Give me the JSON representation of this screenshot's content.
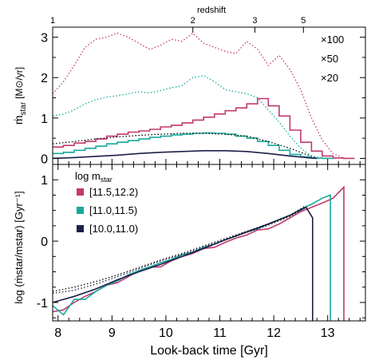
{
  "colors": {
    "magenta": "#c0396e",
    "teal": "#17a99c",
    "navy": "#1c1f4a",
    "black": "#000000"
  },
  "top_axis": {
    "title": "redshift",
    "ticks": [
      {
        "label": "1",
        "t": 7.9
      },
      {
        "label": "2",
        "t": 10.5
      },
      {
        "label": "3",
        "t": 11.65
      },
      {
        "label": "5",
        "t": 12.55
      }
    ]
  },
  "x_axis": {
    "label": "Look-back time [Gyr]",
    "ticks": [
      "8",
      "9",
      "10",
      "11",
      "12",
      "13"
    ]
  },
  "upper_panel": {
    "ylabel_main": "ṁ",
    "ylabel_sub": "star",
    "ylabel_unit": "[M⊙/yr]",
    "ticks": [
      "0",
      "1",
      "2",
      "3"
    ],
    "multiplier_labels": [
      {
        "text": "×100",
        "color_key": "magenta"
      },
      {
        "text": "×50",
        "color_key": "teal"
      },
      {
        "text": "×20",
        "color_key": "navy"
      }
    ]
  },
  "lower_panel": {
    "ylabel_text": "log (ṁstar/mstar)  [Gyr⁻¹]",
    "ticks": [
      "-1",
      "0",
      "1"
    ],
    "legend_title_main": "log m",
    "legend_title_sub": "star",
    "legend": [
      {
        "label": "[11.5,12.2)",
        "color_key": "magenta"
      },
      {
        "label": "[11.0,11.5)",
        "color_key": "teal"
      },
      {
        "label": "[10.0,11.0)",
        "color_key": "navy"
      }
    ]
  },
  "chart_data": [
    {
      "type": "line",
      "title": "",
      "xlabel": "Look-back time [Gyr]",
      "ylabel": "ṁstar [M⊙/yr]",
      "xlim": [
        7.9,
        13.7
      ],
      "ylim": [
        -0.15,
        3.25
      ],
      "series": [
        {
          "name": "[11.5,12.2)",
          "style": "step",
          "color_key": "magenta",
          "x": [
            7.9,
            8.1,
            8.3,
            8.5,
            8.7,
            8.9,
            9.1,
            9.3,
            9.5,
            9.7,
            9.9,
            10.1,
            10.3,
            10.5,
            10.7,
            10.9,
            11.1,
            11.3,
            11.5,
            11.7,
            11.9,
            12.1,
            12.3,
            12.5,
            12.7,
            12.9,
            13.1,
            13.3
          ],
          "y": [
            0.28,
            0.32,
            0.38,
            0.42,
            0.48,
            0.55,
            0.6,
            0.65,
            0.68,
            0.72,
            0.78,
            0.82,
            0.88,
            0.95,
            1.02,
            1.1,
            1.18,
            1.25,
            1.35,
            1.48,
            1.3,
            1.05,
            0.7,
            0.4,
            0.18,
            0.06,
            0.01,
            0.0
          ]
        },
        {
          "name": "[11.0,11.5)",
          "style": "step",
          "color_key": "teal",
          "x": [
            7.9,
            8.1,
            8.3,
            8.5,
            8.7,
            8.9,
            9.1,
            9.3,
            9.5,
            9.7,
            9.9,
            10.1,
            10.3,
            10.5,
            10.7,
            10.9,
            11.1,
            11.3,
            11.5,
            11.7,
            11.9,
            12.1,
            12.3,
            12.5,
            12.7,
            12.9
          ],
          "y": [
            0.12,
            0.15,
            0.2,
            0.25,
            0.3,
            0.36,
            0.4,
            0.44,
            0.48,
            0.52,
            0.55,
            0.58,
            0.6,
            0.62,
            0.63,
            0.62,
            0.6,
            0.55,
            0.5,
            0.42,
            0.32,
            0.2,
            0.1,
            0.04,
            0.01,
            0.0
          ]
        },
        {
          "name": "[10.0,11.0)",
          "style": "line",
          "color_key": "navy",
          "x": [
            7.9,
            8.3,
            8.7,
            9.1,
            9.5,
            9.9,
            10.3,
            10.7,
            11.1,
            11.5,
            11.9,
            12.3,
            12.6,
            12.8
          ],
          "y": [
            0.0,
            0.02,
            0.05,
            0.08,
            0.12,
            0.15,
            0.17,
            0.19,
            0.19,
            0.17,
            0.12,
            0.06,
            0.02,
            0.0
          ]
        },
        {
          "name": "",
          "style": "dotted",
          "color_key": "black",
          "x": [
            7.9,
            8.3,
            8.7,
            9.1,
            9.5,
            9.9,
            10.3,
            10.7,
            11.1,
            11.5,
            11.9,
            12.3,
            12.6,
            12.8
          ],
          "y": [
            0.36,
            0.42,
            0.48,
            0.53,
            0.57,
            0.6,
            0.62,
            0.62,
            0.6,
            0.55,
            0.42,
            0.25,
            0.1,
            0.02
          ]
        },
        {
          "name": "×100",
          "style": "dotted",
          "color_key": "magenta",
          "x": [
            7.9,
            8.1,
            8.3,
            8.5,
            8.7,
            8.9,
            9.1,
            9.3,
            9.5,
            9.7,
            9.9,
            10.1,
            10.3,
            10.5,
            10.7,
            10.9,
            11.1,
            11.3,
            11.5,
            11.7,
            11.9,
            12.1,
            12.3,
            12.5,
            12.7,
            12.9,
            13.1,
            13.3
          ],
          "y": [
            1.6,
            1.9,
            2.3,
            2.75,
            2.95,
            3.0,
            3.1,
            3.0,
            2.85,
            2.7,
            2.8,
            2.95,
            2.9,
            3.1,
            2.85,
            2.75,
            2.65,
            2.6,
            2.9,
            2.7,
            2.3,
            2.55,
            2.2,
            1.7,
            1.0,
            0.45,
            0.12,
            0.0
          ]
        },
        {
          "name": "×50",
          "style": "dotted",
          "color_key": "teal",
          "x": [
            7.9,
            8.1,
            8.3,
            8.5,
            8.7,
            8.9,
            9.1,
            9.3,
            9.5,
            9.7,
            9.9,
            10.1,
            10.3,
            10.5,
            10.7,
            10.9,
            11.1,
            11.3,
            11.5,
            11.7,
            11.9,
            12.1,
            12.3,
            12.5,
            12.7,
            12.9
          ],
          "y": [
            1.05,
            1.1,
            1.2,
            1.35,
            1.45,
            1.52,
            1.55,
            1.6,
            1.65,
            1.62,
            1.68,
            1.75,
            1.8,
            2.0,
            2.05,
            1.9,
            1.7,
            1.65,
            1.6,
            1.5,
            1.2,
            0.9,
            0.55,
            0.25,
            0.06,
            0.0
          ]
        }
      ]
    },
    {
      "type": "line",
      "title": "",
      "xlabel": "Look-back time [Gyr]",
      "ylabel": "log (ṁstar/mstar) [Gyr⁻¹]",
      "xlim": [
        7.9,
        13.7
      ],
      "ylim": [
        -1.3,
        1.25
      ],
      "series": [
        {
          "name": "[11.5,12.2)",
          "color_key": "magenta",
          "x": [
            7.9,
            8.1,
            8.3,
            8.5,
            8.7,
            8.9,
            9.1,
            9.3,
            9.5,
            9.7,
            9.9,
            10.1,
            10.3,
            10.5,
            10.7,
            10.9,
            11.1,
            11.3,
            11.5,
            11.7,
            11.9,
            12.1,
            12.3,
            12.5,
            12.7,
            12.9,
            13.1,
            13.3,
            13.3
          ],
          "y": [
            -1.15,
            -1.12,
            -1.0,
            -0.9,
            -0.82,
            -0.72,
            -0.68,
            -0.58,
            -0.48,
            -0.42,
            -0.42,
            -0.32,
            -0.25,
            -0.2,
            -0.12,
            -0.1,
            -0.02,
            0.05,
            0.1,
            0.18,
            0.2,
            0.28,
            0.38,
            0.48,
            0.55,
            0.62,
            0.7,
            0.88,
            -1.3
          ]
        },
        {
          "name": "[11.0,11.5)",
          "color_key": "teal",
          "x": [
            7.9,
            8.1,
            8.3,
            8.5,
            8.7,
            8.9,
            9.1,
            9.3,
            9.5,
            9.7,
            9.9,
            10.1,
            10.3,
            10.5,
            10.7,
            10.9,
            11.1,
            11.3,
            11.5,
            11.7,
            11.9,
            12.1,
            12.3,
            12.5,
            12.7,
            12.9,
            13.05,
            13.05
          ],
          "y": [
            -1.05,
            -1.2,
            -0.95,
            -0.95,
            -0.82,
            -0.72,
            -0.65,
            -0.55,
            -0.48,
            -0.42,
            -0.35,
            -0.3,
            -0.22,
            -0.18,
            -0.1,
            -0.05,
            0.02,
            0.08,
            0.15,
            0.2,
            0.28,
            0.35,
            0.42,
            0.52,
            0.6,
            0.7,
            0.75,
            -1.3
          ]
        },
        {
          "name": "[10.0,11.0)",
          "color_key": "navy",
          "x": [
            7.9,
            8.3,
            8.7,
            9.1,
            9.5,
            9.9,
            10.3,
            10.7,
            11.1,
            11.5,
            11.9,
            12.3,
            12.6,
            12.72,
            12.72
          ],
          "y": [
            -1.0,
            -0.9,
            -0.78,
            -0.63,
            -0.5,
            -0.38,
            -0.25,
            -0.12,
            0.02,
            0.15,
            0.28,
            0.42,
            0.55,
            0.38,
            -1.3
          ]
        },
        {
          "name": "",
          "style": "dotted",
          "color_key": "navy",
          "x": [
            7.9,
            8.3,
            8.7,
            9.1,
            9.5,
            9.9,
            10.3,
            10.7,
            11.1,
            11.5,
            11.9,
            12.3,
            12.6
          ],
          "y": [
            -0.85,
            -0.8,
            -0.7,
            -0.58,
            -0.45,
            -0.32,
            -0.22,
            -0.1,
            0.02,
            0.14,
            0.26,
            0.4,
            0.55
          ]
        },
        {
          "name": "",
          "style": "dotted",
          "color_key": "black",
          "x": [
            7.9,
            8.3,
            8.7,
            9.1,
            9.5,
            9.9,
            10.3,
            10.7,
            11.1,
            11.5,
            11.9,
            12.3,
            12.6
          ],
          "y": [
            -0.82,
            -0.75,
            -0.66,
            -0.55,
            -0.43,
            -0.31,
            -0.2,
            -0.08,
            0.04,
            0.16,
            0.28,
            0.42,
            0.58
          ]
        }
      ]
    }
  ]
}
